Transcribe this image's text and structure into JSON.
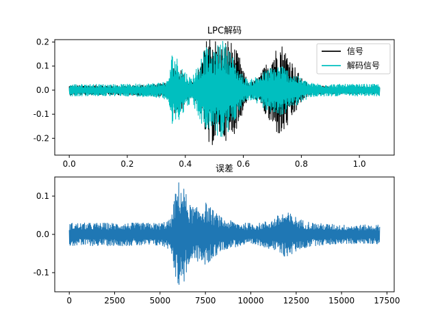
{
  "chart_data": [
    {
      "type": "line",
      "title": "LPC解码",
      "xlabel": "",
      "ylabel": "",
      "xlim": [
        -0.05,
        1.12
      ],
      "ylim": [
        -0.27,
        0.21
      ],
      "xticks": [
        0.0,
        0.2,
        0.4,
        0.6,
        0.8,
        1.0
      ],
      "xtick_labels": [
        "0.0",
        "0.2",
        "0.4",
        "0.6",
        "0.8",
        "1.0"
      ],
      "yticks": [
        0.2,
        0.1,
        0.0,
        -0.1,
        -0.2
      ],
      "ytick_labels": [
        "0.2",
        "0.1",
        "0.0",
        "-0.1",
        "-0.2"
      ],
      "legend": "top-right",
      "grid": false,
      "series": [
        {
          "name": "信号",
          "color": "#000000",
          "envelope": [
            [
              0.0,
              0.02
            ],
            [
              0.1,
              0.02
            ],
            [
              0.2,
              0.02
            ],
            [
              0.3,
              0.025
            ],
            [
              0.34,
              0.03
            ],
            [
              0.36,
              0.1
            ],
            [
              0.38,
              0.1
            ],
            [
              0.4,
              0.05
            ],
            [
              0.43,
              0.03
            ],
            [
              0.46,
              0.14
            ],
            [
              0.48,
              0.25
            ],
            [
              0.5,
              0.22
            ],
            [
              0.52,
              0.19
            ],
            [
              0.55,
              0.22
            ],
            [
              0.57,
              0.18
            ],
            [
              0.59,
              0.13
            ],
            [
              0.6,
              0.08
            ],
            [
              0.62,
              0.03
            ],
            [
              0.64,
              0.04
            ],
            [
              0.66,
              0.07
            ],
            [
              0.7,
              0.16
            ],
            [
              0.73,
              0.2
            ],
            [
              0.76,
              0.14
            ],
            [
              0.8,
              0.05
            ],
            [
              0.83,
              0.02
            ],
            [
              0.9,
              0.015
            ],
            [
              1.0,
              0.015
            ],
            [
              1.07,
              0.015
            ]
          ]
        },
        {
          "name": "解码信号",
          "color": "#00bfbf",
          "envelope": [
            [
              0.0,
              0.025
            ],
            [
              0.1,
              0.025
            ],
            [
              0.2,
              0.025
            ],
            [
              0.3,
              0.03
            ],
            [
              0.34,
              0.04
            ],
            [
              0.355,
              0.16
            ],
            [
              0.37,
              0.14
            ],
            [
              0.4,
              0.08
            ],
            [
              0.42,
              0.05
            ],
            [
              0.44,
              0.1
            ],
            [
              0.47,
              0.18
            ],
            [
              0.5,
              0.16
            ],
            [
              0.52,
              0.22
            ],
            [
              0.55,
              0.18
            ],
            [
              0.58,
              0.1
            ],
            [
              0.6,
              0.06
            ],
            [
              0.62,
              0.04
            ],
            [
              0.66,
              0.07
            ],
            [
              0.7,
              0.1
            ],
            [
              0.73,
              0.11
            ],
            [
              0.76,
              0.08
            ],
            [
              0.8,
              0.05
            ],
            [
              0.83,
              0.03
            ],
            [
              0.9,
              0.025
            ],
            [
              1.0,
              0.025
            ],
            [
              1.07,
              0.025
            ]
          ]
        }
      ]
    },
    {
      "type": "line",
      "title": "误差",
      "xlabel": "",
      "ylabel": "",
      "xlim": [
        -800,
        17900
      ],
      "ylim": [
        -0.15,
        0.15
      ],
      "xticks": [
        0,
        2500,
        5000,
        7500,
        10000,
        12500,
        15000,
        17500
      ],
      "xtick_labels": [
        "0",
        "2500",
        "5000",
        "7500",
        "10000",
        "12500",
        "15000",
        "17500"
      ],
      "yticks": [
        0.1,
        0.0,
        -0.1
      ],
      "ytick_labels": [
        "0.1",
        "0.0",
        "-0.1"
      ],
      "legend": "none",
      "grid": false,
      "series": [
        {
          "name": "",
          "color": "#1f77b4",
          "envelope": [
            [
              0,
              0.03
            ],
            [
              2500,
              0.03
            ],
            [
              5000,
              0.03
            ],
            [
              5600,
              0.04
            ],
            [
              5800,
              0.1
            ],
            [
              6000,
              0.14
            ],
            [
              6300,
              0.13
            ],
            [
              6600,
              0.08
            ],
            [
              7000,
              0.07
            ],
            [
              7500,
              0.085
            ],
            [
              8000,
              0.06
            ],
            [
              8500,
              0.04
            ],
            [
              9500,
              0.03
            ],
            [
              10500,
              0.03
            ],
            [
              11200,
              0.04
            ],
            [
              11800,
              0.06
            ],
            [
              12200,
              0.055
            ],
            [
              12700,
              0.04
            ],
            [
              13500,
              0.03
            ],
            [
              15000,
              0.025
            ],
            [
              17100,
              0.025
            ]
          ]
        }
      ]
    }
  ]
}
